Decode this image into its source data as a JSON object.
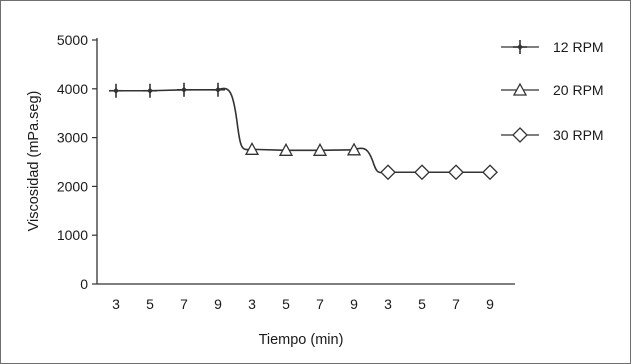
{
  "chart_data": {
    "type": "line",
    "title": "",
    "xlabel": "Tiempo (min)",
    "ylabel": "Viscosidad (mPa.seg)",
    "ylim": [
      0,
      5000
    ],
    "y_ticks": [
      "0",
      "1000",
      "2000",
      "3000",
      "4000",
      "5000"
    ],
    "x_tick_labels": [
      "3",
      "5",
      "7",
      "9",
      "3",
      "5",
      "7",
      "9",
      "3",
      "5",
      "7",
      "9"
    ],
    "grid": false,
    "legend_position": "top-right",
    "line_color": "#333333",
    "series": [
      {
        "name": "12 RPM",
        "marker": "star-cross",
        "y": [
          3960,
          3960,
          3980,
          3980
        ]
      },
      {
        "name": "20 RPM",
        "marker": "triangle",
        "y": [
          2760,
          2740,
          2740,
          2750
        ]
      },
      {
        "name": "30 RPM",
        "marker": "diamond",
        "y": [
          2290,
          2290,
          2290,
          2290
        ]
      }
    ]
  }
}
